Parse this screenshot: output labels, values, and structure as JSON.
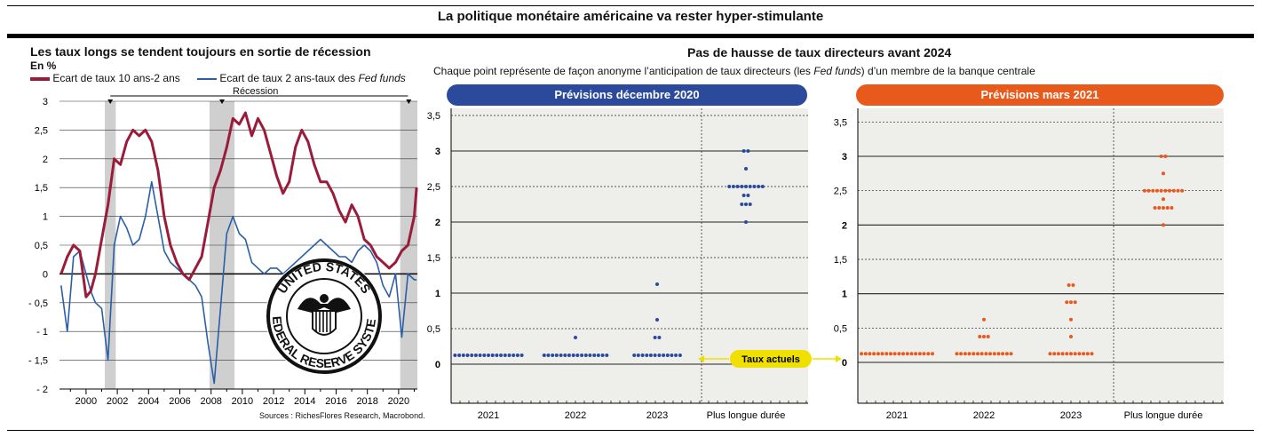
{
  "main_title": "La politique monétaire américaine va rester hyper-stimulante",
  "left": {
    "title": "Les taux longs se tendent toujours en sortie de récession",
    "unit": "En %",
    "legend_red": "Ecart de taux 10 ans-2 ans",
    "legend_blue_prefix": "Ecart de taux 2 ans-taux des ",
    "legend_blue_italic": "Fed funds",
    "recession_label": "Récession",
    "source": "Sources : RichesFlores Research, Macrobond.",
    "seal_top": "UNITED STATES",
    "seal_bottom": "FEDERAL RESERVE SYSTEM"
  },
  "right": {
    "title": "Pas de hausse de taux directeurs avant 2024",
    "subtitle_prefix": "Chaque point représente de façon anonyme l’anticipation de taux directeurs (les ",
    "subtitle_italic": "Fed funds",
    "subtitle_suffix": ") d’un membre de la banque centrale",
    "current_rates_label": "Taux actuels"
  },
  "colors": {
    "red": "#9b1b3a",
    "blue": "#2a5fa8",
    "navy": "#2c4a9c",
    "orange": "#e8591c",
    "grey_bg": "#eeeeea",
    "recession": "#cfcfcf"
  },
  "chart_data": [
    {
      "type": "line",
      "title": "Les taux longs se tendent toujours en sortie de récession",
      "ylabel": "En %",
      "ylim": [
        -2,
        3
      ],
      "yticks": [
        "3",
        "2,5",
        "2",
        "1,5",
        "1",
        "0,5",
        "0",
        "- 0,5",
        "- 1",
        "- 1,5",
        "- 2"
      ],
      "xticks": [
        "2000",
        "2002",
        "2004",
        "2006",
        "2008",
        "2010",
        "2012",
        "2014",
        "2016",
        "2018",
        "2020"
      ],
      "xlim": [
        1998.3,
        2021.2
      ],
      "recessions": [
        [
          2001.2,
          2001.9
        ],
        [
          2007.9,
          2009.5
        ],
        [
          2020.1,
          2021.2
        ]
      ],
      "series": [
        {
          "name": "Ecart de taux 10 ans-2 ans",
          "x": [
            1998.4,
            1998.8,
            1999.2,
            1999.6,
            2000.0,
            2000.3,
            2000.6,
            2001.0,
            2001.4,
            2001.8,
            2002.2,
            2002.6,
            2003.0,
            2003.4,
            2003.8,
            2004.2,
            2004.6,
            2005.0,
            2005.4,
            2005.8,
            2006.2,
            2006.6,
            2007.0,
            2007.4,
            2007.8,
            2008.2,
            2008.6,
            2009.0,
            2009.4,
            2009.8,
            2010.2,
            2010.6,
            2011.0,
            2011.4,
            2011.8,
            2012.2,
            2012.6,
            2013.0,
            2013.4,
            2013.8,
            2014.2,
            2014.6,
            2015.0,
            2015.4,
            2015.8,
            2016.2,
            2016.6,
            2017.0,
            2017.4,
            2017.8,
            2018.2,
            2018.6,
            2019.0,
            2019.4,
            2019.8,
            2020.2,
            2020.6,
            2021.0,
            2021.15
          ],
          "values": [
            0.0,
            0.3,
            0.5,
            0.4,
            -0.4,
            -0.3,
            0.0,
            0.6,
            1.2,
            2.0,
            1.9,
            2.3,
            2.5,
            2.4,
            2.5,
            2.3,
            1.8,
            1.0,
            0.5,
            0.2,
            0.0,
            -0.1,
            0.1,
            0.3,
            0.9,
            1.5,
            1.8,
            2.2,
            2.7,
            2.6,
            2.8,
            2.4,
            2.7,
            2.5,
            2.1,
            1.7,
            1.4,
            1.6,
            2.2,
            2.5,
            2.3,
            1.9,
            1.6,
            1.6,
            1.4,
            1.1,
            0.9,
            1.2,
            1.0,
            0.6,
            0.5,
            0.3,
            0.2,
            0.1,
            0.2,
            0.4,
            0.5,
            1.0,
            1.5
          ]
        },
        {
          "name": "Ecart de taux 2 ans-taux des Fed funds",
          "x": [
            1998.4,
            1998.8,
            1999.2,
            1999.6,
            2000.0,
            2000.3,
            2000.6,
            2001.0,
            2001.4,
            2001.8,
            2002.2,
            2002.6,
            2003.0,
            2003.4,
            2003.8,
            2004.2,
            2004.6,
            2005.0,
            2005.4,
            2005.8,
            2006.2,
            2006.6,
            2007.0,
            2007.4,
            2007.8,
            2008.2,
            2008.6,
            2009.0,
            2009.4,
            2009.8,
            2010.2,
            2010.6,
            2011.0,
            2011.4,
            2011.8,
            2012.2,
            2012.6,
            2013.0,
            2013.4,
            2013.8,
            2014.2,
            2014.6,
            2015.0,
            2015.4,
            2015.8,
            2016.2,
            2016.6,
            2017.0,
            2017.4,
            2017.8,
            2018.2,
            2018.6,
            2019.0,
            2019.4,
            2019.8,
            2020.2,
            2020.6,
            2021.0,
            2021.15
          ],
          "values": [
            -0.2,
            -1.0,
            0.3,
            0.4,
            0.0,
            -0.3,
            -0.5,
            -0.6,
            -1.5,
            0.5,
            1.0,
            0.8,
            0.5,
            0.6,
            1.0,
            1.6,
            1.0,
            0.4,
            0.2,
            0.1,
            0.0,
            -0.1,
            -0.2,
            -0.4,
            -1.2,
            -1.9,
            -0.6,
            0.7,
            1.0,
            0.7,
            0.6,
            0.2,
            0.1,
            0.0,
            0.1,
            0.1,
            0.0,
            0.1,
            0.2,
            0.3,
            0.4,
            0.5,
            0.6,
            0.5,
            0.4,
            0.3,
            0.3,
            0.2,
            0.4,
            0.5,
            0.4,
            0.2,
            -0.2,
            -0.4,
            0.0,
            -1.1,
            0.0,
            -0.1,
            -0.1
          ]
        }
      ]
    },
    {
      "type": "scatter",
      "title": "Prévisions décembre 2020",
      "ylim": [
        -0.5,
        3.5
      ],
      "yticks": [
        "3,5",
        "3",
        "2,5",
        "2",
        "1,5",
        "1",
        "0,5",
        "0"
      ],
      "categories": [
        "2021",
        "2022",
        "2023",
        "Plus longue durée"
      ],
      "series": [
        {
          "name": "2021",
          "dots": [
            {
              "y": 0.125,
              "n": 17
            }
          ]
        },
        {
          "name": "2022",
          "dots": [
            {
              "y": 0.125,
              "n": 16
            },
            {
              "y": 0.375,
              "n": 1
            }
          ]
        },
        {
          "name": "2023",
          "dots": [
            {
              "y": 0.125,
              "n": 12
            },
            {
              "y": 0.375,
              "n": 2
            },
            {
              "y": 0.625,
              "n": 1
            },
            {
              "y": 1.125,
              "n": 1
            }
          ]
        },
        {
          "name": "Plus longue durée",
          "dots": [
            {
              "y": 2.0,
              "n": 1
            },
            {
              "y": 2.25,
              "n": 3
            },
            {
              "y": 2.375,
              "n": 2
            },
            {
              "y": 2.5,
              "n": 9
            },
            {
              "y": 2.75,
              "n": 1
            },
            {
              "y": 3.0,
              "n": 2
            }
          ]
        }
      ]
    },
    {
      "type": "scatter",
      "title": "Prévisions mars 2021",
      "ylim": [
        -0.5,
        3.5
      ],
      "yticks": [
        "3,5",
        "3",
        "2,5",
        "2",
        "1,5",
        "1",
        "0,5",
        "0"
      ],
      "categories": [
        "2021",
        "2022",
        "2023",
        "Plus longue durée"
      ],
      "series": [
        {
          "name": "2021",
          "dots": [
            {
              "y": 0.125,
              "n": 18
            }
          ]
        },
        {
          "name": "2022",
          "dots": [
            {
              "y": 0.125,
              "n": 14
            },
            {
              "y": 0.375,
              "n": 3
            },
            {
              "y": 0.625,
              "n": 1
            }
          ]
        },
        {
          "name": "2023",
          "dots": [
            {
              "y": 0.125,
              "n": 11
            },
            {
              "y": 0.375,
              "n": 1
            },
            {
              "y": 0.625,
              "n": 1
            },
            {
              "y": 0.875,
              "n": 3
            },
            {
              "y": 1.125,
              "n": 2
            }
          ]
        },
        {
          "name": "Plus longue durée",
          "dots": [
            {
              "y": 2.0,
              "n": 1
            },
            {
              "y": 2.25,
              "n": 5
            },
            {
              "y": 2.375,
              "n": 1
            },
            {
              "y": 2.5,
              "n": 10
            },
            {
              "y": 2.75,
              "n": 1
            },
            {
              "y": 3.0,
              "n": 2
            }
          ]
        }
      ]
    }
  ]
}
